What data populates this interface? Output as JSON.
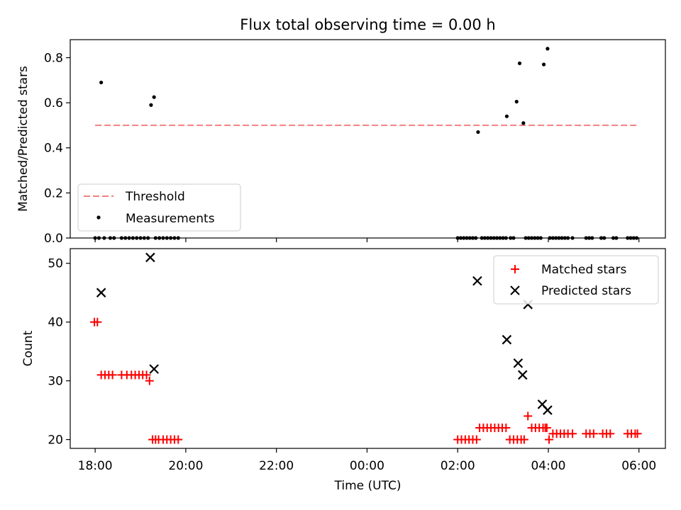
{
  "chart_data": [
    {
      "type": "scatter",
      "title": "Flux total observing time = 0.00 h",
      "xlabel": "",
      "ylabel": "Matched/Predicted stars",
      "xlim": [
        "17:27",
        "06:35"
      ],
      "ylim": [
        0,
        0.88
      ],
      "yticks": [
        0.0,
        0.2,
        0.4,
        0.6,
        0.8
      ],
      "ytick_labels": [
        "0.0",
        "0.2",
        "0.4",
        "0.6",
        "0.8"
      ],
      "legend_position": "lower-left",
      "threshold": {
        "name": "Threshold",
        "value": 0.5,
        "x_range": [
          "18:00",
          "06:00"
        ],
        "color": "#f47f7f",
        "style": "dashed"
      },
      "series": [
        {
          "name": "Measurements",
          "color": "#000000",
          "marker": "dot",
          "x": [
            "18:08",
            "19:14",
            "19:18",
            "02:27",
            "03:05",
            "03:18",
            "03:22",
            "03:27",
            "03:54",
            "03:59"
          ],
          "y": [
            0.69,
            0.59,
            0.625,
            0.47,
            0.54,
            0.605,
            0.775,
            0.51,
            0.77,
            0.84
          ]
        },
        {
          "name": "",
          "color": "#000000",
          "marker": "dot",
          "x": [
            "18:00",
            "18:05",
            "18:12",
            "18:20",
            "18:25",
            "18:35",
            "18:40",
            "18:45",
            "18:50",
            "18:55",
            "19:00",
            "19:05",
            "19:10",
            "19:20",
            "19:25",
            "19:30",
            "19:35",
            "19:40",
            "19:45",
            "19:50",
            "02:00",
            "02:04",
            "02:08",
            "02:12",
            "02:16",
            "02:20",
            "02:24",
            "02:32",
            "02:36",
            "02:40",
            "02:44",
            "02:48",
            "02:52",
            "02:56",
            "03:00",
            "03:04",
            "03:10",
            "03:14",
            "03:30",
            "03:34",
            "03:38",
            "03:42",
            "03:46",
            "03:50",
            "04:02",
            "04:06",
            "04:10",
            "04:14",
            "04:18",
            "04:22",
            "04:26",
            "04:32",
            "04:50",
            "04:54",
            "04:58",
            "05:10",
            "05:14",
            "05:26",
            "05:30",
            "05:45",
            "05:49",
            "05:53",
            "05:57"
          ],
          "y": [
            0,
            0,
            0,
            0,
            0,
            0,
            0,
            0,
            0,
            0,
            0,
            0,
            0,
            0,
            0,
            0,
            0,
            0,
            0,
            0,
            0,
            0,
            0,
            0,
            0,
            0,
            0,
            0,
            0,
            0,
            0,
            0,
            0,
            0,
            0,
            0,
            0,
            0,
            0,
            0,
            0,
            0,
            0,
            0,
            0,
            0,
            0,
            0,
            0,
            0,
            0,
            0,
            0,
            0,
            0,
            0,
            0,
            0,
            0,
            0,
            0,
            0,
            0
          ]
        }
      ]
    },
    {
      "type": "scatter",
      "xlabel": "Time (UTC)",
      "ylabel": "Count",
      "xlim": [
        "17:27",
        "06:35"
      ],
      "ylim": [
        18.5,
        52.5
      ],
      "yticks": [
        20,
        30,
        40,
        50
      ],
      "ytick_labels": [
        "20",
        "30",
        "40",
        "50"
      ],
      "xticks": [
        "18:00",
        "20:00",
        "22:00",
        "00:00",
        "02:00",
        "04:00",
        "06:00"
      ],
      "xtick_labels": [
        "18:00",
        "20:00",
        "22:00",
        "00:00",
        "02:00",
        "04:00",
        "06:00"
      ],
      "legend_position": "top-right",
      "series": [
        {
          "name": "Matched stars",
          "color": "#ff0000",
          "marker": "plus",
          "x": [
            "17:59",
            "18:03",
            "18:08",
            "18:13",
            "18:18",
            "18:23",
            "18:35",
            "18:42",
            "18:48",
            "18:53",
            "18:58",
            "19:03",
            "19:08",
            "19:12",
            "19:16",
            "19:20",
            "19:24",
            "19:30",
            "19:35",
            "19:40",
            "19:45",
            "19:50",
            "02:00",
            "02:05",
            "02:10",
            "02:15",
            "02:20",
            "02:25",
            "02:29",
            "02:34",
            "02:39",
            "02:44",
            "02:49",
            "02:54",
            "02:59",
            "03:04",
            "03:09",
            "03:14",
            "03:19",
            "03:24",
            "03:28",
            "03:33",
            "03:38",
            "03:43",
            "03:48",
            "03:53",
            "03:56",
            "03:58",
            "04:01",
            "04:06",
            "04:11",
            "04:16",
            "04:21",
            "04:26",
            "04:32",
            "04:50",
            "04:55",
            "05:00",
            "05:12",
            "05:17",
            "05:22",
            "05:45",
            "05:50",
            "05:55",
            "05:58"
          ],
          "y": [
            40,
            40,
            31,
            31,
            31,
            31,
            31,
            31,
            31,
            31,
            31,
            31,
            31,
            30,
            20,
            20,
            20,
            20,
            20,
            20,
            20,
            20,
            20,
            20,
            20,
            20,
            20,
            20,
            22,
            22,
            22,
            22,
            22,
            22,
            22,
            22,
            20,
            20,
            20,
            20,
            20,
            24,
            22,
            22,
            22,
            22,
            22,
            22,
            20,
            21,
            21,
            21,
            21,
            21,
            21,
            21,
            21,
            21,
            21,
            21,
            21,
            21,
            21,
            21,
            21
          ]
        },
        {
          "name": "Predicted stars",
          "color": "#000000",
          "marker": "x",
          "x": [
            "18:08",
            "19:13",
            "19:18",
            "02:26",
            "03:05",
            "03:20",
            "03:26",
            "03:33",
            "03:52",
            "03:59"
          ],
          "y": [
            45,
            51,
            32,
            47,
            37,
            33,
            31,
            43,
            26,
            25
          ]
        }
      ]
    }
  ]
}
